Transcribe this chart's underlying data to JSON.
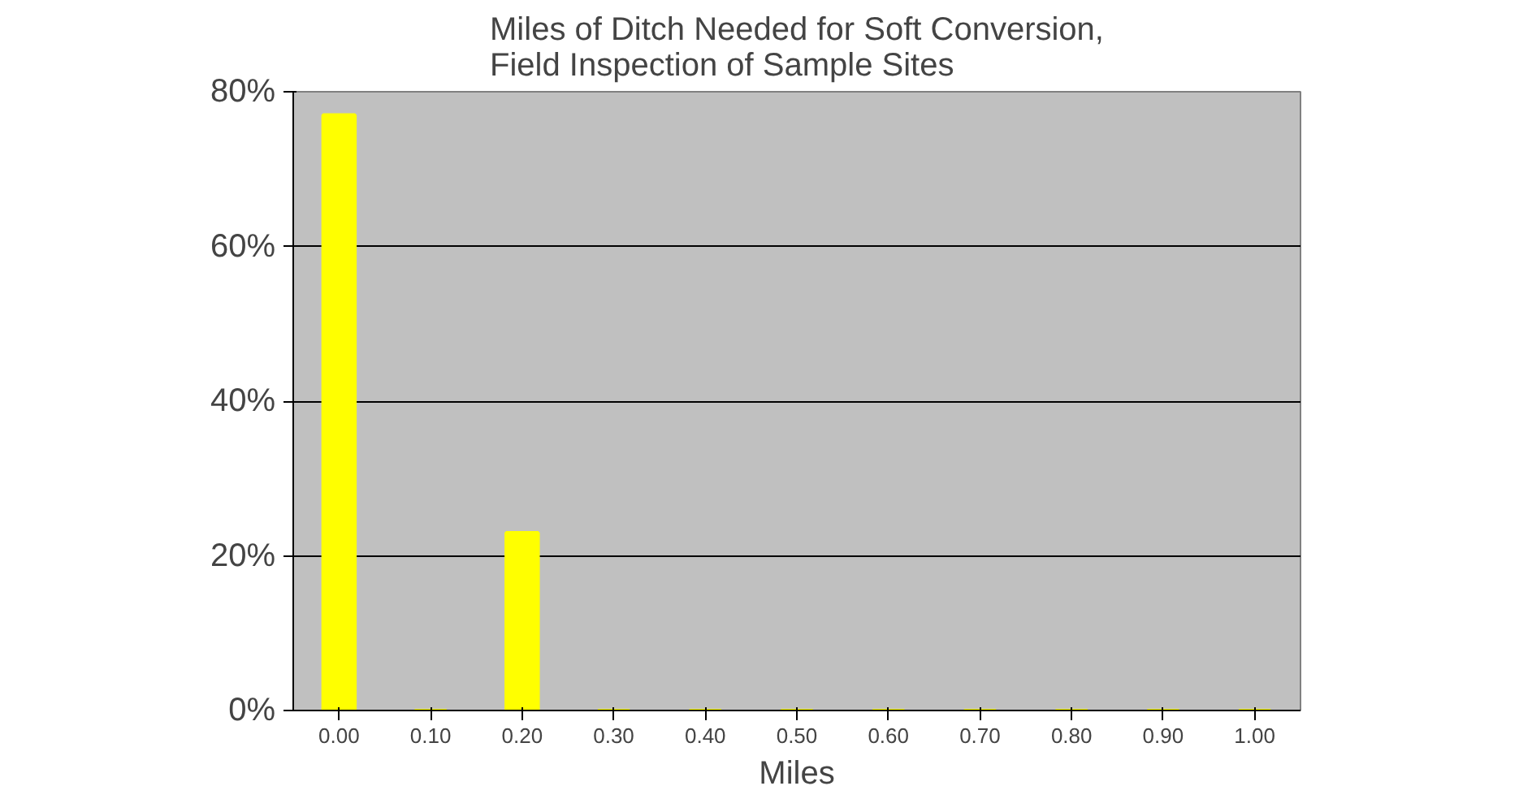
{
  "chart_data": {
    "type": "bar",
    "title": "Miles of Ditch Needed for Soft Conversion,\nField Inspection of Sample Sites",
    "xlabel": "Miles",
    "categories": [
      "0.00",
      "0.10",
      "0.20",
      "0.30",
      "0.40",
      "0.50",
      "0.60",
      "0.70",
      "0.80",
      "0.90",
      "1.00"
    ],
    "values": [
      77,
      0,
      23,
      0,
      0,
      0,
      0,
      0,
      0,
      0,
      0
    ],
    "color": "#ffff00",
    "ylim": [
      0,
      80
    ],
    "yticks": [
      {
        "value": 0,
        "label": "0%"
      },
      {
        "value": 20,
        "label": "20%"
      },
      {
        "value": 40,
        "label": "40%"
      },
      {
        "value": 60,
        "label": "60%"
      },
      {
        "value": 80,
        "label": "80%"
      }
    ],
    "grid": "y"
  }
}
